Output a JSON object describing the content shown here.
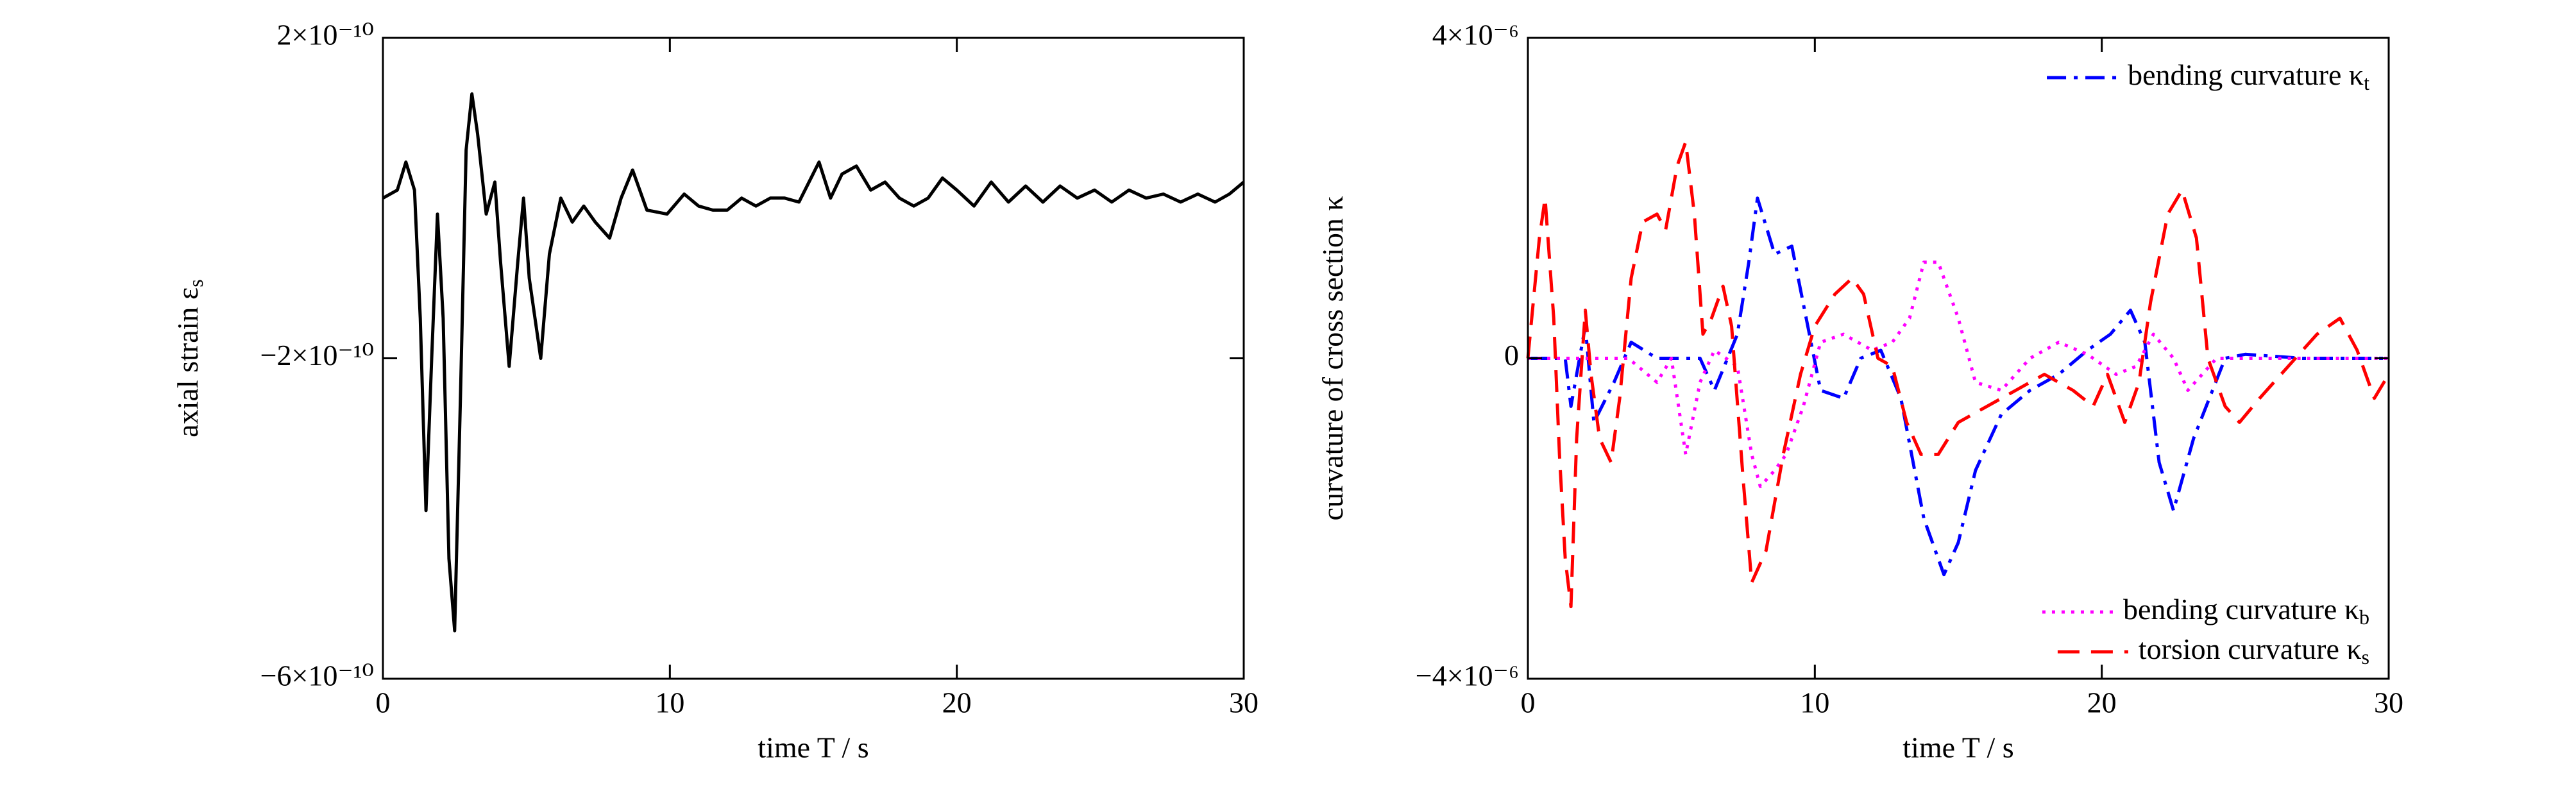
{
  "chart_data": [
    {
      "type": "line",
      "ylabel": "axial strain ε",
      "ylabel_sub": "s",
      "xlabel": "time T / s",
      "xlim": [
        0,
        30
      ],
      "xticks": [
        0,
        10,
        20,
        30
      ],
      "ylim": [
        -6e-10,
        2e-10
      ],
      "yticks": [
        {
          "value": -6e-10,
          "label": "−6×10⁻¹⁰"
        },
        {
          "value": -2e-10,
          "label": "−2×10⁻¹⁰"
        },
        {
          "value": 2e-10,
          "label": "2×10⁻¹⁰"
        }
      ],
      "series": [
        {
          "color": "#000000",
          "dash": "solid",
          "x": [
            0,
            0.5,
            0.8,
            1.1,
            1.3,
            1.5,
            1.7,
            1.9,
            2.1,
            2.3,
            2.5,
            2.7,
            2.9,
            3.1,
            3.3,
            3.6,
            3.9,
            4.1,
            4.4,
            4.7,
            4.9,
            5.1,
            5.5,
            5.8,
            6.2,
            6.6,
            7.0,
            7.4,
            7.9,
            8.3,
            8.7,
            9.2,
            9.9,
            10.5,
            11,
            11.5,
            12,
            12.5,
            13,
            13.5,
            14,
            14.5,
            15.2,
            15.6,
            16,
            16.5,
            17,
            17.5,
            18,
            18.5,
            19,
            19.5,
            20,
            20.6,
            21.2,
            21.8,
            22.4,
            23,
            23.6,
            24.2,
            24.8,
            25.4,
            26,
            26.6,
            27.2,
            27.8,
            28.4,
            29,
            29.5,
            30
          ],
          "values": [
            0,
            1e-11,
            4.5e-11,
            1e-11,
            -1.5e-10,
            -3.9e-10,
            -2e-10,
            -2e-11,
            -1.5e-10,
            -4.5e-10,
            -5.4e-10,
            -2.5e-10,
            6e-11,
            1.3e-10,
            8e-11,
            -2e-11,
            2e-11,
            -8e-11,
            -2.1e-10,
            -8e-11,
            0,
            -1e-10,
            -2e-10,
            -7e-11,
            0,
            -3e-11,
            -1e-11,
            -3e-11,
            -5e-11,
            0,
            3.5e-11,
            -1.5e-11,
            -2e-11,
            5e-12,
            -1e-11,
            -1.5e-11,
            -1.5e-11,
            0,
            -1e-11,
            0,
            0,
            -5e-12,
            4.5e-11,
            0,
            3e-11,
            4e-11,
            1e-11,
            2e-11,
            0,
            -1e-11,
            0,
            2.5e-11,
            1e-11,
            -1e-11,
            2e-11,
            -5e-12,
            1.5e-11,
            -5e-12,
            1.5e-11,
            0,
            1e-11,
            -5e-12,
            1e-11,
            0,
            5e-12,
            -5e-12,
            5e-12,
            -5e-12,
            5e-12,
            2e-11
          ]
        }
      ]
    },
    {
      "type": "line",
      "ylabel": "curvature of cross section κ",
      "xlabel": "time T / s",
      "xlim": [
        0,
        30
      ],
      "xticks": [
        0,
        10,
        20,
        30
      ],
      "ylim": [
        -4e-06,
        4e-06
      ],
      "yticks": [
        {
          "value": -4e-06,
          "label": "−4×10⁻⁶"
        },
        0,
        {
          "value": 4e-06,
          "label": "4×10⁻⁶"
        }
      ],
      "series": [
        {
          "name": "bending curvature κ",
          "name_sub": "t",
          "color": "#0000ff",
          "dash": "dashdot",
          "legend_loc": "upper right",
          "x": [
            0,
            1.3,
            1.5,
            2.0,
            2.3,
            3,
            3.6,
            4.5,
            6,
            6.5,
            7.3,
            7.7,
            8.0,
            8.6,
            9.2,
            9.7,
            10.2,
            11,
            11.6,
            12.3,
            13,
            13.8,
            14.5,
            15,
            15.6,
            16.5,
            17.5,
            18.5,
            19.5,
            20.3,
            21,
            21.5,
            22,
            22.5,
            23.2,
            24.3,
            25,
            27,
            30
          ],
          "values": [
            0,
            0,
            -6e-07,
            4e-07,
            -8e-07,
            -3e-07,
            2e-07,
            0,
            0,
            -4e-07,
            3e-07,
            1.2e-06,
            2e-06,
            1.3e-06,
            1.4e-06,
            5e-07,
            -4e-07,
            -5e-07,
            0,
            1e-07,
            -5e-07,
            -2e-06,
            -2.7e-06,
            -2.3e-06,
            -1.4e-06,
            -7e-07,
            -4e-07,
            -2e-07,
            1e-07,
            3e-07,
            6e-07,
            2e-07,
            -1.3e-06,
            -1.9e-06,
            -1e-06,
            0,
            5e-08,
            0,
            0
          ]
        },
        {
          "name": "bending curvature κ",
          "name_sub": "b",
          "color": "#ff00ff",
          "dash": "dotted",
          "legend_loc": "lower right",
          "x": [
            0,
            3.5,
            4.5,
            5,
            5.5,
            6,
            6.5,
            7.3,
            7.8,
            8.1,
            8.6,
            9,
            9.6,
            10.2,
            11,
            12,
            12.7,
            13.3,
            13.8,
            14.3,
            15,
            15.6,
            16.5,
            17.5,
            18.5,
            19.5,
            20.5,
            21.2,
            21.8,
            22.5,
            23,
            24,
            30
          ],
          "values": [
            0,
            0,
            -3e-07,
            0,
            -1.2e-06,
            -3e-07,
            1e-07,
            -1e-07,
            -1.2e-06,
            -1.6e-06,
            -1.4e-06,
            -1.2e-06,
            -6e-07,
            2e-07,
            3e-07,
            1e-07,
            2e-07,
            5e-07,
            1.2e-06,
            1.2e-06,
            5e-07,
            -3e-07,
            -4e-07,
            0,
            2e-07,
            5e-08,
            -2e-07,
            -1e-07,
            3e-07,
            0,
            -4e-07,
            0,
            0
          ]
        },
        {
          "name": "torsion curvature κ",
          "name_sub": "s",
          "color": "#ff0000",
          "dash": "dashed",
          "legend_loc": "lower right",
          "x": [
            0,
            0.4,
            0.6,
            0.9,
            1.1,
            1.3,
            1.5,
            1.7,
            2.0,
            2.2,
            2.5,
            2.9,
            3.2,
            3.6,
            4.0,
            4.5,
            4.8,
            5.2,
            5.5,
            5.8,
            6.1,
            6.4,
            6.8,
            7.1,
            7.5,
            7.8,
            8.3,
            8.9,
            9.5,
            10,
            10.7,
            11.3,
            11.7,
            12.2,
            12.7,
            13.2,
            13.7,
            14.3,
            15,
            16,
            17,
            18,
            19,
            19.7,
            20.2,
            20.8,
            21.3,
            21.7,
            22.3,
            22.8,
            23.3,
            23.7,
            24.3,
            24.8,
            25.5,
            26.5,
            27.5,
            28.3,
            28.9,
            29.5,
            30
          ],
          "values": [
            0,
            1.5e-06,
            2e-06,
            5e-07,
            -1.2e-06,
            -2.5e-06,
            -3.1e-06,
            -1e-06,
            6e-07,
            -2e-07,
            -1e-06,
            -1.3e-06,
            -5e-07,
            1e-06,
            1.7e-06,
            1.8e-06,
            1.6e-06,
            2.4e-06,
            2.7e-06,
            1.8e-06,
            3e-07,
            5e-07,
            9e-07,
            4e-07,
            -1.5e-06,
            -2.8e-06,
            -2.4e-06,
            -1.2e-06,
            -2e-07,
            4e-07,
            8e-07,
            1e-06,
            8e-07,
            0,
            -1e-07,
            -8e-07,
            -1.2e-06,
            -1.2e-06,
            -8e-07,
            -6e-07,
            -4e-07,
            -2e-07,
            -4e-07,
            -6e-07,
            -2e-07,
            -8e-07,
            -3e-07,
            7e-07,
            1.8e-06,
            2.1e-06,
            1.5e-06,
            0,
            -6e-07,
            -8e-07,
            -5e-07,
            -1e-07,
            3e-07,
            5e-07,
            1e-07,
            -5e-07,
            -2e-07
          ]
        }
      ]
    }
  ]
}
